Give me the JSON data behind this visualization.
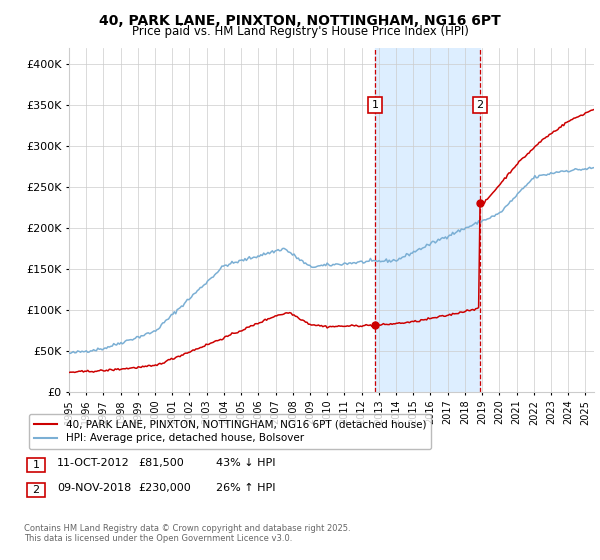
{
  "title": "40, PARK LANE, PINXTON, NOTTINGHAM, NG16 6PT",
  "subtitle": "Price paid vs. HM Land Registry's House Price Index (HPI)",
  "legend_label_red": "40, PARK LANE, PINXTON, NOTTINGHAM, NG16 6PT (detached house)",
  "legend_label_blue": "HPI: Average price, detached house, Bolsover",
  "annotation1_date": "11-OCT-2012",
  "annotation1_price": "£81,500",
  "annotation1_hpi": "43% ↓ HPI",
  "annotation2_date": "09-NOV-2018",
  "annotation2_price": "£230,000",
  "annotation2_hpi": "26% ↑ HPI",
  "footer": "Contains HM Land Registry data © Crown copyright and database right 2025.\nThis data is licensed under the Open Government Licence v3.0.",
  "red_color": "#cc0000",
  "blue_color": "#7bafd4",
  "shade_color": "#ddeeff",
  "vline_color": "#cc0000",
  "annotation_box_edge": "#cc0000",
  "ylim_min": 0,
  "ylim_max": 420000,
  "yticks": [
    0,
    50000,
    100000,
    150000,
    200000,
    250000,
    300000,
    350000,
    400000
  ],
  "event1_year": 2012.78,
  "event2_year": 2018.86,
  "event1_price": 81500,
  "event2_price": 230000
}
